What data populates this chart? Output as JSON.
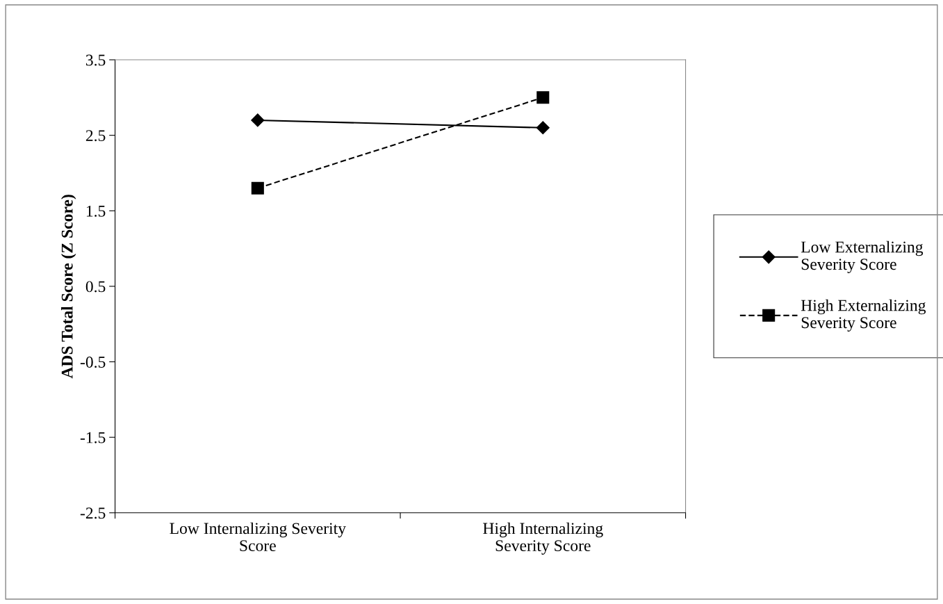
{
  "chart_data": {
    "type": "line",
    "ylabel": "ADS Total Score (Z Score)",
    "categories": [
      "Low Internalizing Severity Score",
      "High Internalizing Severity Score"
    ],
    "series": [
      {
        "name": "Low Externalizing Severity Score",
        "color": "#000000",
        "values": [
          2.7,
          2.6
        ],
        "marker": "diamond",
        "line_style": "solid"
      },
      {
        "name": "High Externalizing Severity Score",
        "color": "#000000",
        "values": [
          1.8,
          3.0
        ],
        "marker": "square",
        "line_style": "dashed"
      }
    ],
    "ylim": [
      -2.5,
      3.5
    ],
    "yticks": [
      {
        "value": -2.5,
        "label": "-2.5"
      },
      {
        "value": -1.5,
        "label": "-1.5"
      },
      {
        "value": -0.5,
        "label": "-0.5"
      },
      0.5,
      1.5,
      2.5,
      3.5
    ],
    "grid": false,
    "legend": "right"
  }
}
